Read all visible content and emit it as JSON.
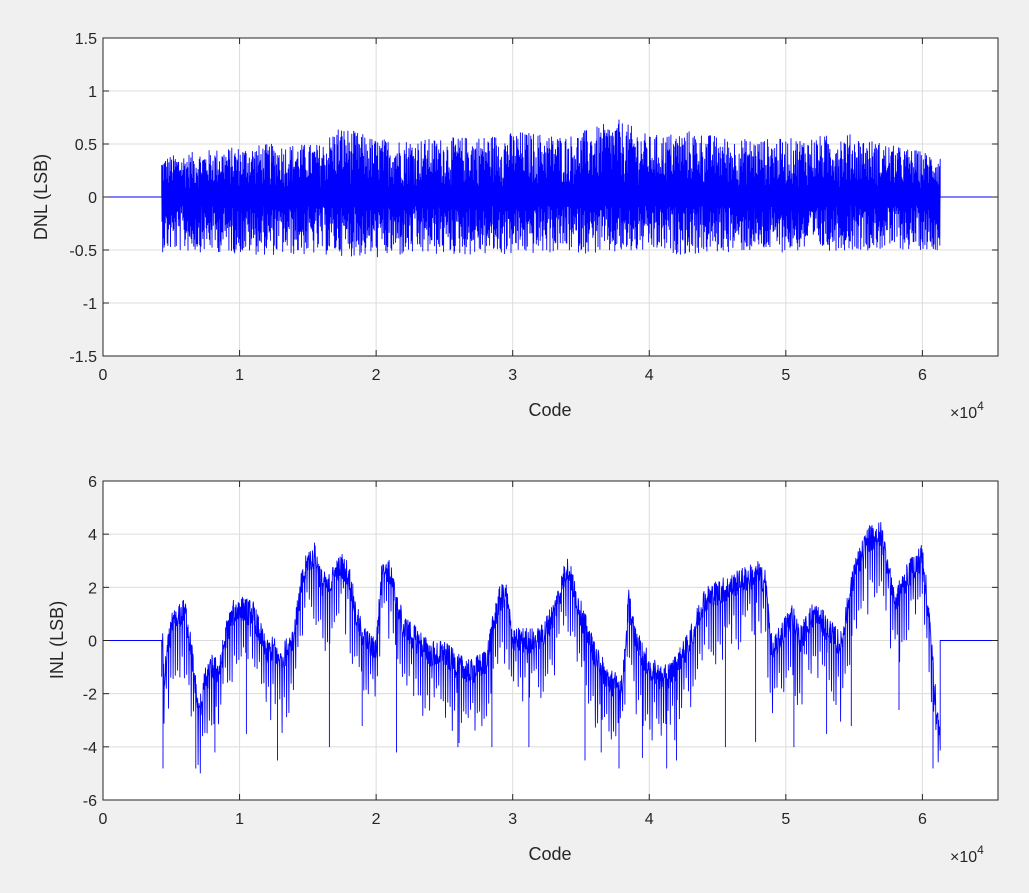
{
  "figure": {
    "background": "#f0f0f0",
    "axes_background": "#ffffff",
    "line_color": "#0000ff",
    "grid_color": "#dcdcdc",
    "axis_color": "#262626"
  },
  "chart_data": [
    {
      "type": "line",
      "name": "dnl",
      "xlabel": "Code",
      "ylabel": "DNL (LSB)",
      "xlim": [
        0,
        65536
      ],
      "ylim": [
        -1.5,
        1.5
      ],
      "xticks": [
        0,
        10000,
        20000,
        30000,
        40000,
        50000,
        60000
      ],
      "xtick_labels": [
        "0",
        "1",
        "2",
        "3",
        "4",
        "5",
        "6"
      ],
      "x_exponent": {
        "base": "×10",
        "power": "4"
      },
      "yticks": [
        -1.5,
        -1,
        -0.5,
        0,
        0.5,
        1,
        1.5
      ],
      "ytick_labels": [
        "-1.5",
        "-1",
        "-0.5",
        "0",
        "0.5",
        "1",
        "1.5"
      ],
      "grid": true,
      "active_range": [
        4300,
        61300
      ],
      "envelope": {
        "x": [
          4300,
          8000,
          12000,
          16000,
          17200,
          20000,
          24000,
          28000,
          30500,
          34000,
          37800,
          40000,
          43000,
          46000,
          50000,
          54500,
          58000,
          61300
        ],
        "upper": [
          0.38,
          0.45,
          0.5,
          0.5,
          0.68,
          0.55,
          0.55,
          0.58,
          0.62,
          0.58,
          0.73,
          0.58,
          0.63,
          0.55,
          0.55,
          0.6,
          0.48,
          0.4
        ],
        "lower": [
          -0.52,
          -0.52,
          -0.55,
          -0.55,
          -0.55,
          -0.58,
          -0.55,
          -0.55,
          -0.55,
          -0.52,
          -0.55,
          -0.52,
          -0.55,
          -0.52,
          -0.52,
          -0.5,
          -0.5,
          -0.5
        ]
      }
    },
    {
      "type": "line",
      "name": "inl",
      "xlabel": "Code",
      "ylabel": "INL (LSB)",
      "xlim": [
        0,
        65536
      ],
      "ylim": [
        -6,
        6
      ],
      "xticks": [
        0,
        10000,
        20000,
        30000,
        40000,
        50000,
        60000
      ],
      "xtick_labels": [
        "0",
        "1",
        "2",
        "3",
        "4",
        "5",
        "6"
      ],
      "x_exponent": {
        "base": "×10",
        "power": "4"
      },
      "yticks": [
        -6,
        -4,
        -2,
        0,
        2,
        4,
        6
      ],
      "ytick_labels": [
        "-6",
        "-4",
        "-2",
        "0",
        "2",
        "4",
        "6"
      ],
      "grid": true,
      "active_range": [
        4300,
        61300
      ],
      "trend": {
        "x": [
          4300,
          4500,
          4700,
          5000,
          5500,
          6000,
          6500,
          7000,
          7500,
          8000,
          8500,
          9000,
          9500,
          10000,
          11000,
          12000,
          12500,
          13000,
          14000,
          14500,
          15000,
          15500,
          16000,
          16500,
          17000,
          17500,
          18000,
          18500,
          19000,
          19500,
          20000,
          20500,
          21000,
          22000,
          23000,
          24000,
          25000,
          26000,
          27000,
          28000,
          29000,
          29500,
          30000,
          31000,
          32000,
          33000,
          34000,
          35000,
          36000,
          37000,
          38000,
          38500,
          39000,
          40000,
          41000,
          42000,
          43000,
          44000,
          45000,
          46000,
          47000,
          48000,
          48500,
          49000,
          50000,
          50500,
          51000,
          52000,
          53000,
          54000,
          55000,
          56000,
          57000,
          58000,
          59000,
          60000,
          60500,
          61000,
          61300
        ],
        "y": [
          0.5,
          -1.5,
          -0.5,
          0.5,
          0.8,
          1.2,
          -0.5,
          -2.8,
          -1.5,
          -1.0,
          -1.2,
          0.2,
          1.0,
          1.2,
          1.0,
          -0.5,
          -0.3,
          -0.8,
          0.2,
          2.0,
          3.0,
          3.2,
          2.2,
          2.0,
          2.5,
          2.8,
          2.5,
          1.0,
          0.2,
          -0.2,
          -0.3,
          3.0,
          2.5,
          0.5,
          0.0,
          -0.5,
          -0.5,
          -1.0,
          -1.2,
          -0.8,
          1.5,
          1.8,
          0.0,
          0.0,
          0.0,
          1.0,
          2.8,
          1.0,
          -0.5,
          -1.5,
          -1.8,
          1.5,
          0.0,
          -1.0,
          -1.5,
          -1.0,
          0.0,
          1.5,
          1.8,
          2.0,
          2.3,
          2.5,
          2.2,
          -0.5,
          0.5,
          1.0,
          0.0,
          1.0,
          0.5,
          -0.2,
          2.5,
          3.8,
          4.0,
          1.5,
          2.5,
          3.2,
          0.8,
          -2.5,
          -3.8
        ]
      },
      "dips": [
        {
          "x": 4400,
          "y": -4.8
        },
        {
          "x": 6800,
          "y": -4.8
        },
        {
          "x": 8200,
          "y": -4.2
        },
        {
          "x": 10500,
          "y": -3.5
        },
        {
          "x": 12800,
          "y": -4.5
        },
        {
          "x": 16600,
          "y": -4.0
        },
        {
          "x": 19000,
          "y": -3.2
        },
        {
          "x": 21500,
          "y": -4.2
        },
        {
          "x": 26000,
          "y": -4.0
        },
        {
          "x": 28500,
          "y": -4.0
        },
        {
          "x": 31200,
          "y": -4.0
        },
        {
          "x": 35300,
          "y": -4.5
        },
        {
          "x": 36500,
          "y": -4.2
        },
        {
          "x": 37800,
          "y": -4.8
        },
        {
          "x": 39500,
          "y": -4.4
        },
        {
          "x": 41300,
          "y": -4.8
        },
        {
          "x": 42000,
          "y": -4.5
        },
        {
          "x": 45600,
          "y": -4.0
        },
        {
          "x": 47800,
          "y": -3.8
        },
        {
          "x": 50600,
          "y": -4.0
        },
        {
          "x": 53000,
          "y": -3.5
        },
        {
          "x": 54800,
          "y": -3.2
        },
        {
          "x": 58300,
          "y": -2.6
        },
        {
          "x": 60800,
          "y": -4.8
        }
      ]
    }
  ]
}
